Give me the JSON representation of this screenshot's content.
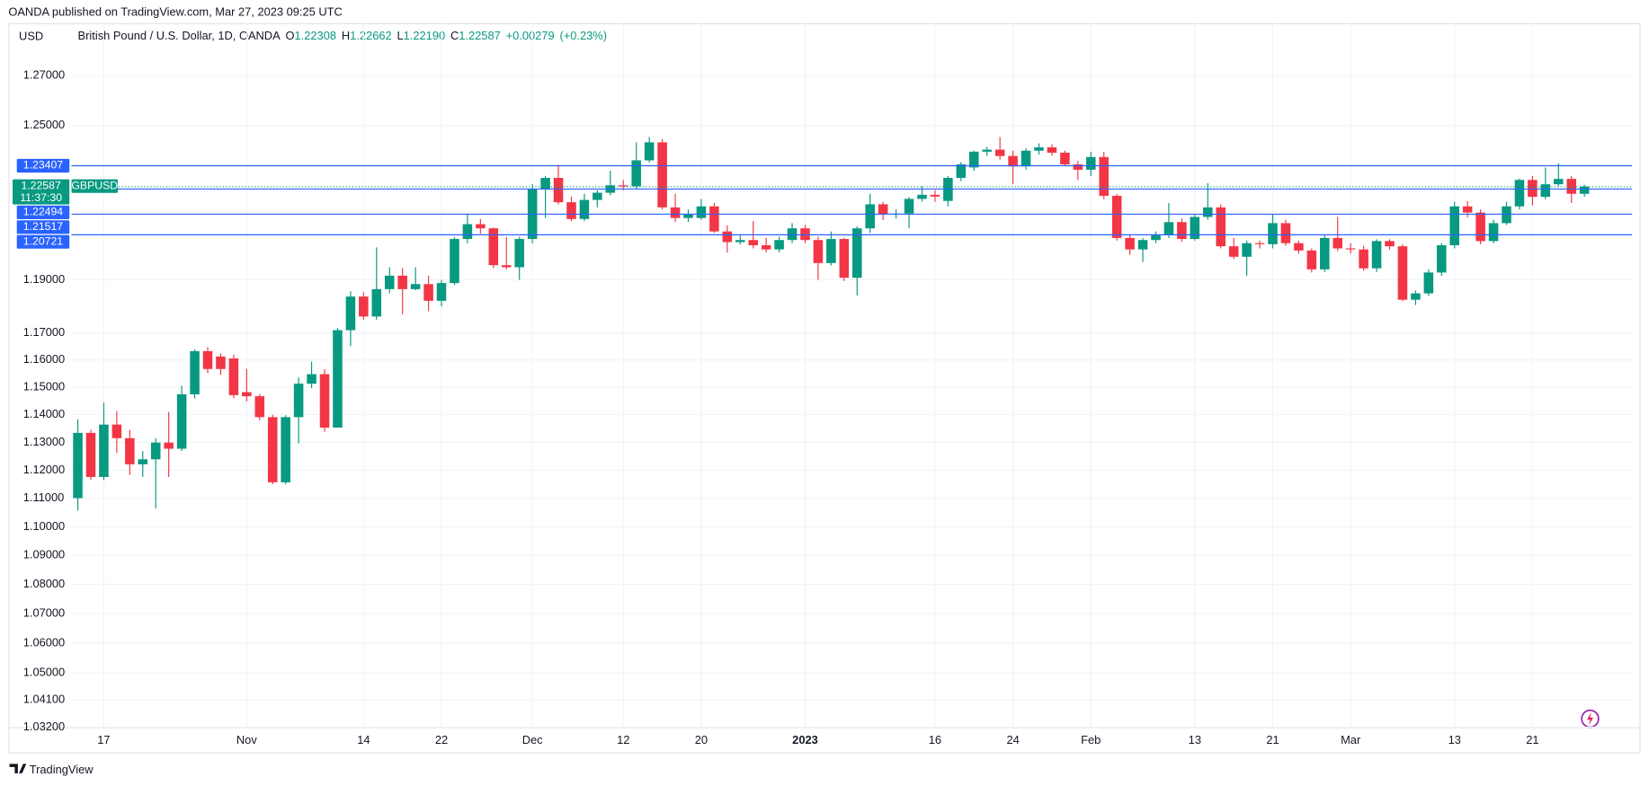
{
  "publisher": "OANDA published on TradingView.com, Mar 27, 2023 09:25 UTC",
  "footer": "TradingView",
  "chart_data": {
    "type": "candlestick",
    "currency": "USD",
    "title": "British Pound / U.S. Dollar, 1D, OANDA",
    "legend": [
      {
        "key": "O",
        "value": 1.22308,
        "label": "1.22308"
      },
      {
        "key": "H",
        "value": 1.22662,
        "label": "1.22662"
      },
      {
        "key": "L",
        "value": 1.2219,
        "label": "1.22190"
      },
      {
        "key": "C",
        "value": 1.22587,
        "label": "1.22587"
      },
      {
        "key": "",
        "value": 0.00279,
        "label": "+0.00279"
      },
      {
        "key": "",
        "value": 0.23,
        "label": "(+0.23%)"
      }
    ],
    "log_scale": true,
    "grid": true,
    "up_color": "#089981",
    "down_color": "#f23645",
    "level_color": "#2962ff",
    "ylim": [
      1.032,
      1.2914
    ],
    "yticks": [
      {
        "value": 1.27,
        "label": "1.27000"
      },
      {
        "value": 1.25,
        "label": "1.25000"
      },
      {
        "value": 1.19,
        "label": "1.19000"
      },
      {
        "value": 1.17,
        "label": "1.17000"
      },
      {
        "value": 1.16,
        "label": "1.16000"
      },
      {
        "value": 1.15,
        "label": "1.15000"
      },
      {
        "value": 1.14,
        "label": "1.14000"
      },
      {
        "value": 1.13,
        "label": "1.13000"
      },
      {
        "value": 1.12,
        "label": "1.12000"
      },
      {
        "value": 1.11,
        "label": "1.11000"
      },
      {
        "value": 1.1,
        "label": "1.10000"
      },
      {
        "value": 1.09,
        "label": "1.09000"
      },
      {
        "value": 1.08,
        "label": "1.08000"
      },
      {
        "value": 1.07,
        "label": "1.07000"
      },
      {
        "value": 1.06,
        "label": "1.06000"
      },
      {
        "value": 1.05,
        "label": "1.05000"
      },
      {
        "value": 1.041,
        "label": "1.04100"
      },
      {
        "value": 1.032,
        "label": "1.03200"
      }
    ],
    "levels": [
      1.23407,
      1.22494,
      1.21517,
      1.20721
    ],
    "current": {
      "value": 1.22587,
      "symbol": "GBPUSD",
      "countdown": "11:37:30"
    },
    "categories": [
      null,
      null,
      "17",
      null,
      null,
      null,
      null,
      null,
      null,
      null,
      null,
      null,
      null,
      "Nov",
      null,
      null,
      null,
      null,
      null,
      null,
      null,
      null,
      "14",
      null,
      null,
      null,
      null,
      null,
      "22",
      null,
      null,
      null,
      null,
      null,
      null,
      "Dec",
      null,
      null,
      null,
      null,
      null,
      null,
      "12",
      null,
      null,
      null,
      null,
      null,
      "20",
      null,
      null,
      null,
      null,
      null,
      null,
      null,
      "2023",
      null,
      null,
      null,
      null,
      null,
      null,
      null,
      null,
      null,
      "16",
      null,
      null,
      null,
      null,
      null,
      "24",
      null,
      null,
      null,
      null,
      null,
      "Feb",
      null,
      null,
      null,
      null,
      null,
      null,
      null,
      "13",
      null,
      null,
      null,
      null,
      null,
      "21",
      null,
      null,
      null,
      null,
      null,
      "Mar",
      null,
      null,
      null,
      null,
      null,
      null,
      null,
      "13",
      null,
      null,
      null,
      null,
      null,
      "21",
      null,
      null,
      null,
      null
    ],
    "open": [
      1.1101,
      1.1334,
      1.1176,
      1.1364,
      1.1315,
      1.1221,
      1.1239,
      1.1299,
      1.1277,
      1.1474,
      1.1633,
      1.1613,
      1.1606,
      1.1482,
      1.1467,
      1.1391,
      1.1157,
      1.1391,
      1.1513,
      1.1548,
      1.1353,
      1.1711,
      1.1837,
      1.1762,
      1.1865,
      1.1916,
      1.1865,
      1.1884,
      1.1821,
      1.1888,
      1.2056,
      1.2113,
      1.2097,
      1.1956,
      1.1948,
      1.2056,
      1.2251,
      1.2293,
      1.2198,
      1.2133,
      1.2207,
      1.2235,
      1.2264,
      1.226,
      1.2362,
      1.2433,
      1.2178,
      1.2137,
      1.2137,
      1.2182,
      1.2085,
      1.2044,
      1.2052,
      1.2032,
      1.2016,
      1.2052,
      1.2097,
      1.2052,
      1.1964,
      1.2056,
      1.1908,
      1.2097,
      1.219,
      1.215,
      1.2154,
      1.2211,
      1.2227,
      1.2203,
      1.2293,
      1.2334,
      1.2396,
      1.2404,
      1.2379,
      1.2338,
      1.24,
      1.2413,
      1.2392,
      1.2346,
      1.2325,
      1.2375,
      1.2223,
      1.206,
      1.2016,
      1.2052,
      1.2072,
      1.2121,
      1.2056,
      1.2141,
      1.2178,
      1.2028,
      1.1988,
      1.204,
      1.2036,
      1.2117,
      1.204,
      1.2012,
      1.194,
      1.206,
      1.202,
      1.2016,
      1.1944,
      1.2048,
      1.2028,
      1.1825,
      1.1849,
      1.1928,
      1.2032,
      1.2182,
      1.2158,
      1.2048,
      1.2117,
      1.2182,
      1.2285,
      1.2219,
      1.2268,
      1.2289,
      1.22308
    ],
    "high": [
      1.1383,
      1.1345,
      1.1444,
      1.1413,
      1.1345,
      1.1269,
      1.1315,
      1.141,
      1.1505,
      1.164,
      1.1648,
      1.1625,
      1.162,
      1.1567,
      1.1475,
      1.14,
      1.1398,
      1.1536,
      1.1594,
      1.1567,
      1.1719,
      1.1857,
      1.1853,
      1.2024,
      1.1948,
      1.1945,
      1.1948,
      1.1916,
      1.19,
      1.2064,
      1.2154,
      1.2133,
      1.21,
      1.2064,
      1.2065,
      1.2268,
      1.2301,
      1.2344,
      1.222,
      1.2231,
      1.2245,
      1.2321,
      1.2285,
      1.2433,
      1.2454,
      1.2445,
      1.2231,
      1.217,
      1.2211,
      1.2195,
      1.2109,
      1.207,
      1.2125,
      1.206,
      1.2065,
      1.2117,
      1.211,
      1.2065,
      1.2085,
      1.206,
      1.2105,
      1.2231,
      1.22,
      1.217,
      1.2218,
      1.226,
      1.2245,
      1.23,
      1.2355,
      1.24,
      1.2415,
      1.2454,
      1.24,
      1.241,
      1.2429,
      1.2425,
      1.24,
      1.236,
      1.2396,
      1.2395,
      1.223,
      1.207,
      1.206,
      1.2085,
      1.2195,
      1.2135,
      1.215,
      1.2272,
      1.219,
      1.206,
      1.205,
      1.205,
      1.215,
      1.213,
      1.205,
      1.202,
      1.207,
      1.2141,
      1.204,
      1.203,
      1.2055,
      1.2055,
      1.2035,
      1.186,
      1.194,
      1.204,
      1.22,
      1.2203,
      1.217,
      1.213,
      1.22,
      1.229,
      1.23,
      1.2334,
      1.235,
      1.23,
      1.22662
    ],
    "low": [
      1.1057,
      1.1165,
      1.1165,
      1.1262,
      1.1183,
      1.1176,
      1.1065,
      1.1176,
      1.1269,
      1.1459,
      1.1552,
      1.1545,
      1.146,
      1.1448,
      1.138,
      1.115,
      1.115,
      1.1296,
      1.1497,
      1.1338,
      1.1353,
      1.1652,
      1.175,
      1.175,
      1.1849,
      1.177,
      1.1861,
      1.1782,
      1.18,
      1.188,
      1.204,
      1.2077,
      1.1944,
      1.194,
      1.19,
      1.204,
      1.2137,
      1.219,
      1.2125,
      1.2125,
      1.2178,
      1.2225,
      1.2245,
      1.225,
      1.2354,
      1.217,
      1.2121,
      1.2121,
      1.213,
      1.208,
      1.2004,
      1.2035,
      1.202,
      1.2005,
      1.2005,
      1.204,
      1.204,
      1.19,
      1.1955,
      1.1896,
      1.1841,
      1.208,
      1.2129,
      1.2135,
      1.2097,
      1.22,
      1.22,
      1.2182,
      1.228,
      1.2321,
      1.238,
      1.2365,
      1.2268,
      1.2325,
      1.2385,
      1.238,
      1.234,
      1.2285,
      1.23,
      1.221,
      1.205,
      1.1995,
      1.1968,
      1.204,
      1.206,
      1.2045,
      1.205,
      1.213,
      1.202,
      1.198,
      1.1916,
      1.202,
      1.202,
      1.203,
      1.2,
      1.1928,
      1.193,
      1.201,
      1.2,
      1.1935,
      1.193,
      1.2015,
      1.182,
      1.1805,
      1.184,
      1.1915,
      1.202,
      1.214,
      1.2035,
      1.204,
      1.211,
      1.217,
      1.2186,
      1.221,
      1.226,
      1.2195,
      1.2219
    ],
    "close": [
      1.1334,
      1.1176,
      1.1364,
      1.1315,
      1.1221,
      1.1239,
      1.1299,
      1.1277,
      1.1474,
      1.1633,
      1.1567,
      1.1567,
      1.1471,
      1.1467,
      1.1391,
      1.1157,
      1.1391,
      1.1513,
      1.1548,
      1.1353,
      1.1711,
      1.1837,
      1.1762,
      1.1865,
      1.1916,
      1.1865,
      1.1884,
      1.1821,
      1.1888,
      1.2056,
      1.2113,
      1.2097,
      1.1956,
      1.1948,
      1.2056,
      1.2251,
      1.2293,
      1.2198,
      1.2133,
      1.2207,
      1.2235,
      1.2264,
      1.226,
      1.2362,
      1.2433,
      1.2178,
      1.2137,
      1.215,
      1.2182,
      1.2085,
      1.2044,
      1.2052,
      1.2032,
      1.2016,
      1.2052,
      1.2097,
      1.2052,
      1.1964,
      1.2056,
      1.1908,
      1.2097,
      1.219,
      1.215,
      1.2154,
      1.2211,
      1.2227,
      1.222,
      1.2293,
      1.2346,
      1.2396,
      1.2404,
      1.2379,
      1.2338,
      1.24,
      1.2413,
      1.2392,
      1.2346,
      1.2325,
      1.2375,
      1.2223,
      1.206,
      1.2016,
      1.2052,
      1.2072,
      1.2121,
      1.2056,
      1.2141,
      1.2178,
      1.2028,
      1.1988,
      1.204,
      1.2036,
      1.2117,
      1.204,
      1.2012,
      1.194,
      1.206,
      1.202,
      1.2016,
      1.1944,
      1.2048,
      1.2028,
      1.1825,
      1.1849,
      1.1928,
      1.2032,
      1.2182,
      1.2158,
      1.2048,
      1.2117,
      1.2182,
      1.2285,
      1.2219,
      1.2268,
      1.2289,
      1.2231,
      1.22587
    ]
  }
}
